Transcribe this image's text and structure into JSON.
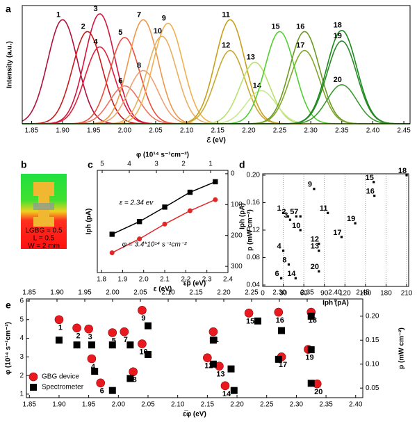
{
  "panel_b": {
    "panel": "b",
    "texts": [
      "LGBG = 0.5",
      "L = 0.5",
      "W = 2 mm"
    ]
  },
  "chart_data": [
    {
      "panel": "a",
      "type": "spectra",
      "x_label": "ℰ (eV)",
      "y_label": "Intensity (a.u.)",
      "xlim": [
        1.835,
        2.46
      ],
      "ylim": [
        0,
        1
      ],
      "xticks": [
        1.85,
        {
          "value": 1.9,
          "label": "1.90"
        },
        1.95,
        {
          "value": 2,
          "label": "2.00"
        },
        2.05,
        {
          "value": 2.1,
          "label": "2.10"
        },
        2.15,
        {
          "value": 2.2,
          "label": "2.20"
        },
        2.25,
        {
          "value": 2.3,
          "label": "2.30"
        },
        2.35,
        {
          "value": 2.4,
          "label": "2.40"
        },
        2.45
      ],
      "names": [
        "1",
        "2",
        "3",
        "4",
        "5",
        "6",
        "7",
        "8",
        "9",
        "10",
        "11",
        "12",
        "13",
        "14",
        "15",
        "16",
        "17",
        "18",
        "19",
        "20"
      ],
      "colors": [
        "#b0103c",
        "#c81a1a",
        "#d4143c",
        "#e01e3c",
        "#e8503c",
        "#f07060",
        "#f0964a",
        "#f0a070",
        "#f0b050",
        "#e8b060",
        "#c8a018",
        "#c8a830",
        "#b8e070",
        "#c8e890",
        "#50d030",
        "#6a9a20",
        "#80a828",
        "#1a8a1a",
        "#2a8a2a",
        "#3a9a30"
      ],
      "x": [
        1.9,
        1.94,
        1.96,
        1.96,
        2.0,
        2.0,
        2.03,
        2.03,
        2.07,
        2.06,
        2.17,
        2.17,
        2.21,
        2.22,
        2.25,
        2.29,
        2.29,
        2.35,
        2.35,
        2.35
      ],
      "values": [
        0.88,
        0.78,
        0.93,
        0.65,
        0.73,
        0.32,
        0.88,
        0.45,
        0.85,
        0.74,
        0.88,
        0.62,
        0.52,
        0.28,
        0.78,
        0.78,
        0.62,
        0.79,
        0.7,
        0.33
      ]
    },
    {
      "panel": "c",
      "type": "line",
      "x_label": "ε (eV)",
      "x2_label": "φ (10¹⁴ s⁻¹cm⁻²)",
      "y_label": "Iph (pA)",
      "xlim": [
        1.78,
        2.4
      ],
      "xticks": [
        1.8,
        1.9,
        {
          "value": 2,
          "label": "2.0"
        },
        2.1,
        2.2,
        2.3,
        2.4
      ],
      "x2lim": [
        5.18,
        0.36
      ],
      "x2ticks": [
        5,
        4,
        3,
        2,
        1
      ],
      "y2lim": [
        320,
        -11
      ],
      "y2ticks": [
        0,
        100,
        200,
        300
      ],
      "x": [
        1.85,
        1.98,
        2.1,
        2.22,
        2.34
      ],
      "series": [
        {
          "name": "ε = 2.34 ev",
          "color": "#000000",
          "marker": "square",
          "axis": "y2",
          "values": [
            196,
            155,
            108,
            60,
            26
          ]
        },
        {
          "name": "φ = 3.4*10¹⁴ s⁻¹cm⁻²",
          "color": "#e02828",
          "marker": "circle",
          "axis": "y2",
          "values": [
            256,
            211,
            163,
            120,
            84
          ]
        }
      ]
    },
    {
      "panel": "d",
      "type": "scatter",
      "x_label": "Iph (pA)",
      "y_label": "p (mW cm⁻²)",
      "y_label2": "Iph (pA)",
      "xlim": [
        0,
        213
      ],
      "xticks": [
        0,
        30,
        60,
        90,
        120,
        150,
        180,
        210
      ],
      "ylim": [
        0.038,
        0.202
      ],
      "yticks": [
        0.04,
        0.08,
        0.12,
        0.16,
        {
          "value": 0.2,
          "label": "0.20"
        }
      ],
      "grid": true,
      "color": "#000000",
      "x": [
        30,
        37,
        40,
        30,
        49,
        27,
        55,
        38,
        75,
        55,
        95,
        82,
        82,
        48,
        162,
        163,
        115,
        210,
        135,
        82
      ],
      "values": [
        0.145,
        0.14,
        0.135,
        0.09,
        0.14,
        0.05,
        0.14,
        0.07,
        0.18,
        0.12,
        0.145,
        0.1,
        0.09,
        0.05,
        0.19,
        0.17,
        0.11,
        0.2,
        0.13,
        0.06
      ],
      "point_labels": [
        "1",
        "2",
        "3",
        "4",
        "5",
        "6",
        "7",
        "8",
        "9",
        "10",
        "11",
        "12",
        "13",
        "14",
        "15",
        "16",
        "17",
        "18",
        "19",
        "20"
      ],
      "point_colors": [
        "#b0103c",
        "#c81a1a",
        "#d4143c",
        "#e01e3c",
        "#e8503c",
        "#f07060",
        "#f0964a",
        "#f0a070",
        "#f0b050",
        "#e8b060",
        "#c8a018",
        "#c8a830",
        "#b8e070",
        "#c8e890",
        "#50d030",
        "#6a9a20",
        "#80a828",
        "#1a8a1a",
        "#2a8a2a",
        "#3a9a30"
      ]
    },
    {
      "panel": "e",
      "type": "scatter2",
      "x_label": "ε̅φ (eV)",
      "x2_label": "ε̅p (eV)",
      "y_label": "φ (10¹⁴ s⁻¹cm⁻²)",
      "y2_label": "p (mW cm⁻²)",
      "xlim": [
        1.845,
        2.412
      ],
      "xticks": [
        1.85,
        {
          "value": 1.9,
          "label": "1.90"
        },
        1.95,
        {
          "value": 2,
          "label": "2.00"
        },
        2.05,
        {
          "value": 2.1,
          "label": "2.10"
        },
        2.15,
        {
          "value": 2.2,
          "label": "2.20"
        },
        2.25,
        {
          "value": 2.3,
          "label": "2.30"
        },
        2.35,
        {
          "value": 2.4,
          "label": "2.40"
        }
      ],
      "x2lim": [
        1.845,
        2.45
      ],
      "x2ticks": [
        1.85,
        {
          "value": 1.9,
          "label": "1.90"
        },
        1.95,
        {
          "value": 2,
          "label": "2.00"
        },
        2.05,
        {
          "value": 2.1,
          "label": "2.10"
        },
        2.15,
        {
          "value": 2.2,
          "label": "2.20"
        },
        2.25,
        {
          "value": 2.3,
          "label": "2.30"
        },
        2.35,
        {
          "value": 2.4,
          "label": "2.40"
        },
        2.45
      ],
      "ylim": [
        0.81,
        6.11
      ],
      "yticks": [
        1,
        2,
        3,
        4,
        5,
        6
      ],
      "y2lim": [
        0.03,
        0.236
      ],
      "y2ticks": [
        0.05,
        {
          "value": 0.1,
          "label": "0.10"
        },
        0.15,
        {
          "value": 0.2,
          "label": "0.20"
        }
      ],
      "legend": "lower left",
      "series": [
        {
          "name": "GBG device",
          "color": "#e8191f",
          "marker": "circle",
          "x": [
            1.9,
            1.93,
            1.95,
            1.955,
            1.99,
            1.97,
            2.01,
            2.025,
            2.04,
            2.04,
            2.16,
            2.15,
            2.17,
            2.18,
            2.22,
            2.27,
            2.275,
            2.325,
            2.32,
            2.335
          ],
          "values": [
            5.0,
            4.55,
            4.5,
            2.9,
            4.3,
            1.6,
            4.35,
            2.2,
            5.5,
            3.7,
            4.35,
            2.95,
            2.5,
            1.45,
            5.35,
            5.4,
            3.0,
            5.4,
            3.4,
            1.55
          ]
        },
        {
          "name": "Spectrometer",
          "color": "#000000",
          "marker": "square",
          "axis": "y2",
          "x": [
            1.9,
            1.93,
            1.955,
            1.96,
            1.99,
            1.99,
            2.02,
            2.02,
            2.05,
            2.05,
            2.16,
            2.16,
            2.19,
            2.195,
            2.235,
            2.275,
            2.27,
            2.325,
            2.325,
            2.325
          ],
          "values": [
            0.15,
            0.14,
            0.14,
            0.085,
            0.14,
            0.045,
            0.14,
            0.07,
            0.18,
            0.12,
            0.15,
            0.1,
            0.09,
            0.045,
            0.19,
            0.17,
            0.11,
            0.2,
            0.13,
            0.06
          ]
        }
      ],
      "point_labels": [
        "1",
        "2",
        "3",
        "4",
        "5",
        "6",
        "7",
        "8",
        "9",
        "10",
        "11",
        "12",
        "13",
        "14",
        "15",
        "16",
        "17",
        "18",
        "19",
        "20"
      ],
      "point_colors": [
        "#b0103c",
        "#c81a1a",
        "#d4143c",
        "#e01e3c",
        "#e8503c",
        "#f07060",
        "#f0964a",
        "#f0a070",
        "#f0b050",
        "#e8b060",
        "#c8a018",
        "#c8a830",
        "#b8e070",
        "#c8e890",
        "#50d030",
        "#6a9a20",
        "#80a828",
        "#1a8a1a",
        "#2a8a2a",
        "#3a9a30"
      ]
    }
  ]
}
